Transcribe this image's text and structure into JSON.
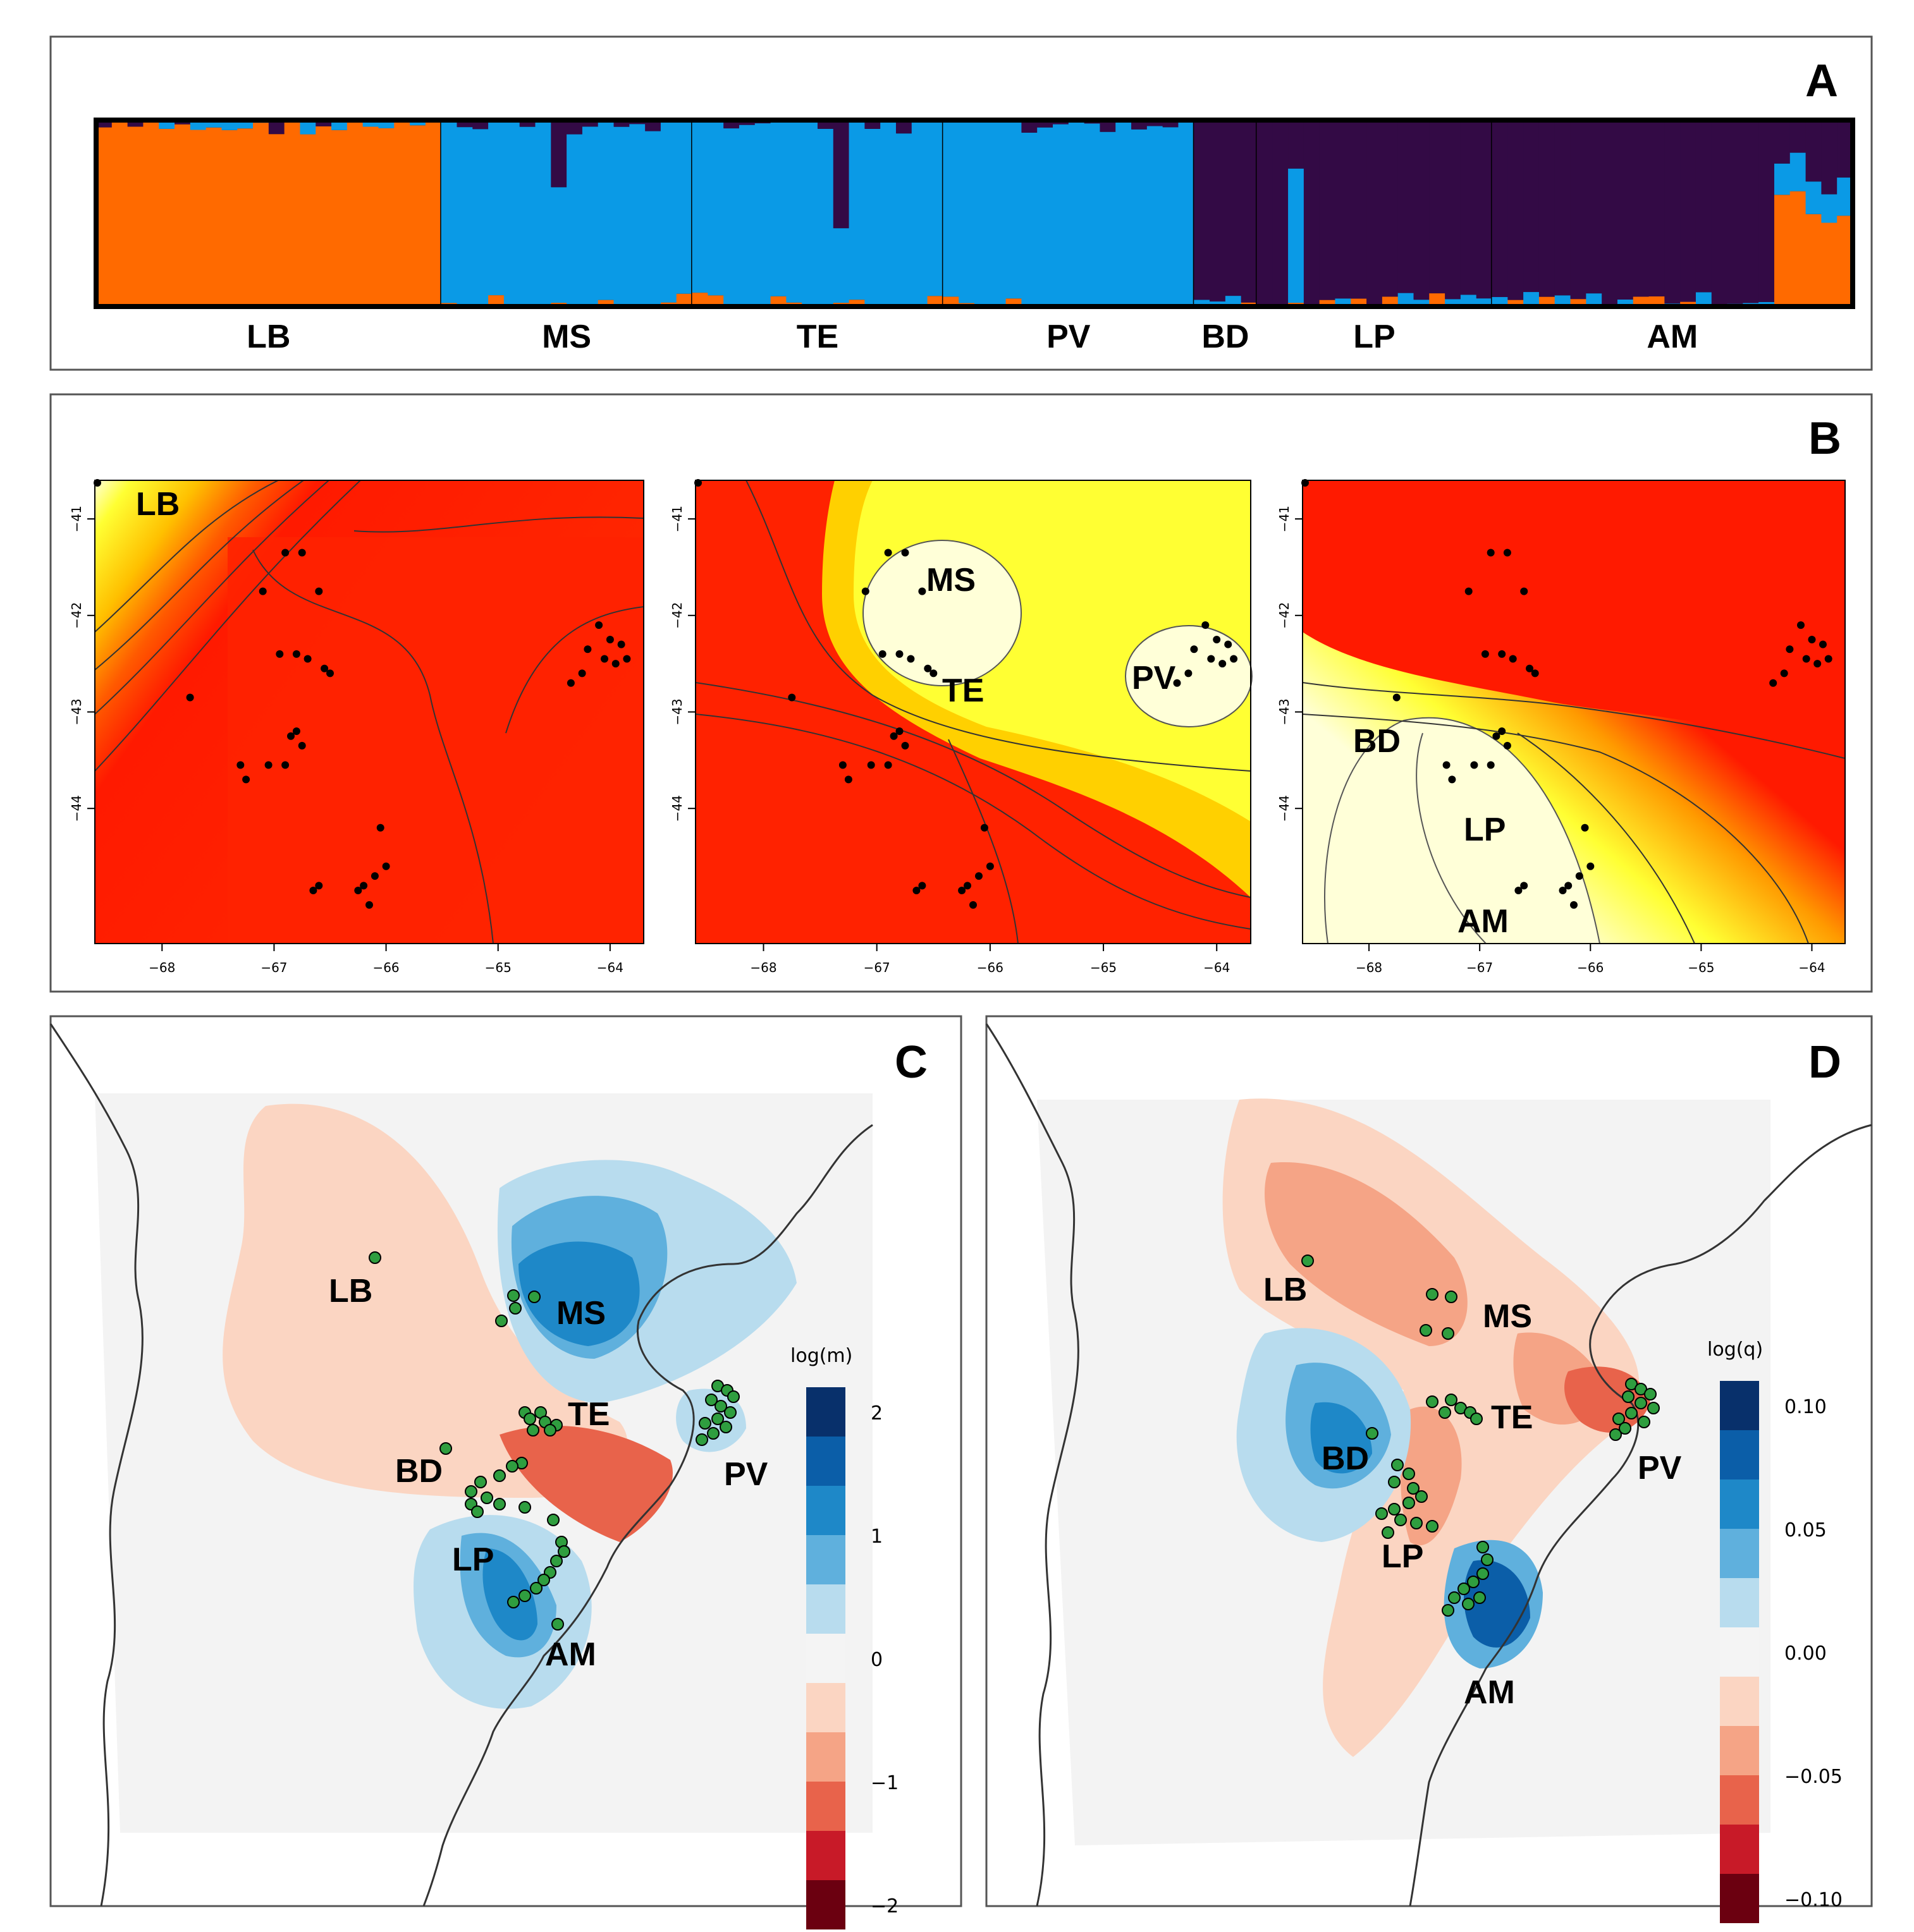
{
  "panels": {
    "A": {
      "letter": "A"
    },
    "B": {
      "letter": "B"
    },
    "C": {
      "letter": "C"
    },
    "D": {
      "letter": "D"
    }
  },
  "chart_data": [
    {
      "type": "bar",
      "title": "A",
      "subtype": "stacked admixture (STRUCTURE) plot",
      "groups": [
        {
          "label": "LB",
          "n": 22
        },
        {
          "label": "MS",
          "n": 16
        },
        {
          "label": "TE",
          "n": 16
        },
        {
          "label": "PV",
          "n": 16
        },
        {
          "label": "BD",
          "n": 4
        },
        {
          "label": "LP",
          "n": 15
        },
        {
          "label": "AM",
          "n": 23
        }
      ],
      "series": [
        {
          "name": "cluster-orange",
          "color": "#ff6a00"
        },
        {
          "name": "cluster-blue",
          "color": "#0a9ae6"
        },
        {
          "name": "cluster-purple",
          "color": "#330a45"
        }
      ],
      "ylim": [
        0,
        1
      ]
    },
    {
      "type": "heatmap",
      "title": "B",
      "subtype": "interpolated cluster membership maps (3 panels)",
      "xlim": [
        -68.6,
        -63.7
      ],
      "ylim": [
        -45.4,
        -40.6
      ],
      "x_ticks": [
        -68,
        -67,
        -66,
        -65,
        -64
      ],
      "y_ticks": [
        -41,
        -42,
        -43,
        -44
      ],
      "maps": [
        {
          "highlight": [
            "LB"
          ],
          "contours": [
            "0.65",
            "0.6",
            "0.55",
            "0.5",
            "0.45",
            "0.4",
            "0.35",
            "0.3",
            "0.25",
            "0.2"
          ]
        },
        {
          "highlight": [
            "MS",
            "TE",
            "PV"
          ],
          "contours": [
            "0.65",
            "0.6",
            "0.55",
            "0.5",
            "0.45",
            "0.4",
            "0.35",
            "0.3",
            "0.25",
            "0.2"
          ]
        },
        {
          "highlight": [
            "BD",
            "LP",
            "AM"
          ],
          "contours": [
            "0.65",
            "0.6",
            "0.55",
            "0.5",
            "0.45",
            "0.4",
            "0.35",
            "0.3",
            "0.25",
            "0.2"
          ]
        }
      ],
      "color_scale": [
        "#ff1a00",
        "#ff5a00",
        "#ff9a00",
        "#ffd000",
        "#ffff33",
        "#ffffd8"
      ]
    },
    {
      "type": "heatmap",
      "title": "C",
      "subtype": "EEMS effective migration surface",
      "legend_title": "log(m)",
      "legend_ticks": [
        "2",
        "1",
        "0",
        "−1",
        "−2"
      ],
      "legend_colors": [
        "#08306b",
        "#0b5ea8",
        "#1e88c8",
        "#5fb0dd",
        "#b8dcee",
        "#f4f4f4",
        "#fbd5c2",
        "#f5a486",
        "#e8634b",
        "#c81a28",
        "#6b0010"
      ],
      "sites": [
        "LB",
        "MS",
        "TE",
        "BD",
        "LP",
        "AM",
        "PV"
      ]
    },
    {
      "type": "heatmap",
      "title": "D",
      "subtype": "EEMS effective diversity surface",
      "legend_title": "log(q)",
      "legend_ticks": [
        "0.10",
        "0.05",
        "0.00",
        "−0.05",
        "−0.10"
      ],
      "legend_colors": [
        "#08306b",
        "#0b5ea8",
        "#1e88c8",
        "#5fb0dd",
        "#b8dcee",
        "#f4f4f4",
        "#fbd5c2",
        "#f5a486",
        "#e8634b",
        "#c81a28",
        "#6b0010"
      ],
      "sites": [
        "LB",
        "MS",
        "TE",
        "BD",
        "LP",
        "AM",
        "PV"
      ]
    }
  ]
}
